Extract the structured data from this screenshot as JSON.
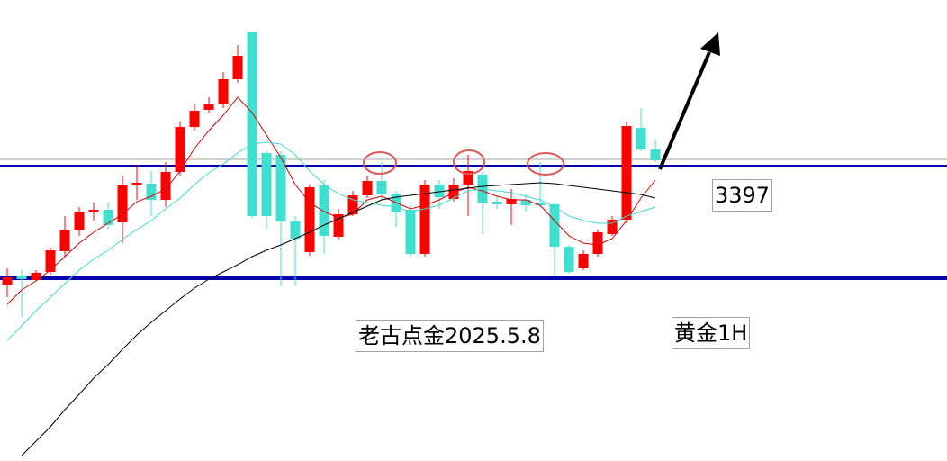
{
  "chart_data": {
    "type": "candlestick",
    "annotations": [
      "老古点金2025.5.8",
      "黄金1H"
    ],
    "ylim": [
      3233,
      3489
    ],
    "up_color": "#ff0000",
    "down_color": "#40e0d0",
    "candles": {
      "open": [
        3331,
        3336,
        3333.5,
        3338,
        3349.5,
        3361,
        3371,
        3372.5,
        3365.5,
        3386,
        3387,
        3378,
        3393.5,
        3418.5,
        3428,
        3431,
        3445,
        3471.5,
        3404,
        3403,
        3366,
        3349,
        3386,
        3357.5,
        3370,
        3380.5,
        3388.5,
        3381.5,
        3372.5,
        3348,
        3386.5,
        3378.5,
        3386.5,
        3392,
        3377,
        3375.5,
        3378,
        3376.5,
        3375.5,
        3352,
        3340,
        3348,
        3359,
        3367,
        3418,
        3406
      ],
      "high": [
        3340,
        3339,
        3339,
        3351.5,
        3369,
        3374,
        3376.5,
        3376.5,
        3391.5,
        3397.5,
        3394,
        3399,
        3421.5,
        3431.5,
        3435,
        3449,
        3464,
        3471.5,
        3405,
        3405,
        3369,
        3386.5,
        3389,
        3373,
        3383,
        3391.5,
        3399,
        3383,
        3375,
        3389,
        3389,
        3390,
        3403,
        3394,
        3380,
        3384,
        3381,
        3399,
        3376.5,
        3353,
        3350,
        3361.5,
        3369,
        3421.5,
        3429,
        3411.5
      ],
      "low": [
        3324,
        3313,
        3333,
        3336.5,
        3346.5,
        3358,
        3366.5,
        3361.5,
        3354,
        3378,
        3369,
        3374,
        3391.5,
        3416.5,
        3426.5,
        3429,
        3443,
        3368,
        3361.5,
        3330,
        3330,
        3347,
        3348,
        3356,
        3369,
        3379,
        3378,
        3363,
        3346.5,
        3346.5,
        3373,
        3377,
        3369,
        3359,
        3373,
        3364,
        3371.5,
        3374,
        3336,
        3337,
        3339,
        3346.5,
        3358,
        3365,
        3405,
        3399
      ],
      "close": [
        3335,
        3334,
        3337.5,
        3350,
        3361,
        3371.5,
        3372.5,
        3364,
        3386,
        3387.5,
        3378,
        3393.5,
        3418.5,
        3427.5,
        3431,
        3445,
        3458,
        3369,
        3369,
        3366,
        3356.5,
        3385,
        3358,
        3370,
        3380.5,
        3388.5,
        3381,
        3371,
        3348,
        3386.5,
        3379.5,
        3386.5,
        3394,
        3376.5,
        3375.5,
        3378.5,
        3375,
        3375,
        3352,
        3338,
        3348,
        3360,
        3367,
        3419,
        3406,
        3400
      ]
    },
    "lines": [
      {
        "color": "#e00000",
        "values": [
          3320,
          3328,
          3333,
          3339,
          3346.5,
          3354,
          3360,
          3365,
          3370,
          3377,
          3380,
          3384,
          3394,
          3406.5,
          3416.5,
          3425,
          3435,
          3426.5,
          3414,
          3401.5,
          3386.5,
          3376.5,
          3371.5,
          3368,
          3370,
          3378,
          3380,
          3376.5,
          3373,
          3375,
          3378,
          3382,
          3385,
          3383,
          3380,
          3378,
          3378,
          3375,
          3366.5,
          3358,
          3354,
          3353,
          3356.5,
          3366.5,
          3379,
          3389
        ]
      },
      {
        "color": "#40d8d0",
        "values": [
          3300,
          3308,
          3316.5,
          3324,
          3331.5,
          3339,
          3345,
          3350,
          3356,
          3361.5,
          3366.5,
          3373,
          3379,
          3386.5,
          3393,
          3398,
          3404,
          3409,
          3410,
          3409,
          3403,
          3394,
          3386.5,
          3381.5,
          3378,
          3376.5,
          3375,
          3374,
          3371.5,
          3373,
          3375,
          3379,
          3383,
          3384,
          3383,
          3382,
          3380,
          3378,
          3374,
          3369,
          3366.5,
          3365,
          3365,
          3369,
          3371.5,
          3374
        ]
      },
      {
        "color": "#000000",
        "values": [
          null,
          3236,
          3244,
          3252,
          3261.5,
          3270,
          3279,
          3286.5,
          3295,
          3303,
          3310,
          3316.5,
          3323,
          3329,
          3334,
          3338,
          3342,
          3346.5,
          3350,
          3353,
          3356.5,
          3360,
          3364,
          3367.5,
          3371,
          3374.5,
          3378,
          3379.5,
          3380.5,
          3381.5,
          3382.5,
          3383.5,
          3384.5,
          3385.5,
          3386,
          3386.5,
          3387,
          3387.5,
          3387,
          3386,
          3385,
          3384,
          3383,
          3382,
          3381,
          3379
        ]
      }
    ],
    "hlines": [
      {
        "value": 3400.5,
        "color": "#a0a0a0",
        "width": 1
      },
      {
        "value": 3397,
        "color": "#0000b0",
        "width": 2
      },
      {
        "value": 3334.5,
        "color": "#0000b0",
        "width": 4
      }
    ]
  }
}
